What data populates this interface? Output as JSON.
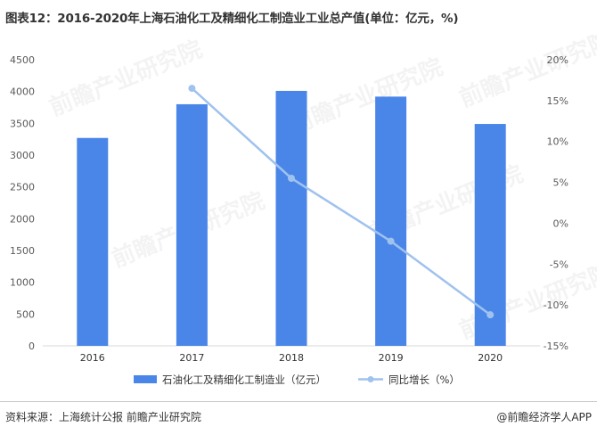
{
  "title": "图表12：2016-2020年上海石油化工及精细化工制造业工业总产值(单位：亿元，%)",
  "watermark": "前瞻产业研究院",
  "footer": {
    "source": "资料来源：上海统计公报 前瞻产业研究院",
    "brand": "@前瞻经济学人APP"
  },
  "colors": {
    "bar": "#4a86e8",
    "line": "#9fc2ee",
    "axis_text": "#595959",
    "axis_line": "#d9d9d9"
  },
  "chart_data": {
    "type": "bar",
    "categories": [
      "2016",
      "2017",
      "2018",
      "2019",
      "2020"
    ],
    "series": [
      {
        "name": "石油化工及精细化工制造业（亿元）",
        "type": "bar",
        "axis": "left",
        "values": [
          3270,
          3800,
          4010,
          3920,
          3490
        ]
      },
      {
        "name": "同比增长（%）",
        "type": "line",
        "axis": "right",
        "values": [
          null,
          16.5,
          5.5,
          -2.2,
          -11.2
        ]
      }
    ],
    "y_left": {
      "lim": [
        0,
        4500
      ],
      "ticks": [
        "0",
        "500",
        "1000",
        "1500",
        "2000",
        "2500",
        "3000",
        "3500",
        "4000",
        "4500"
      ]
    },
    "y_right": {
      "lim": [
        -15,
        20
      ],
      "ticks": [
        "-15%",
        "-10%",
        "-5%",
        "0%",
        "5%",
        "10%",
        "15%",
        "20%"
      ]
    },
    "grid": false,
    "legend": "bottom"
  }
}
